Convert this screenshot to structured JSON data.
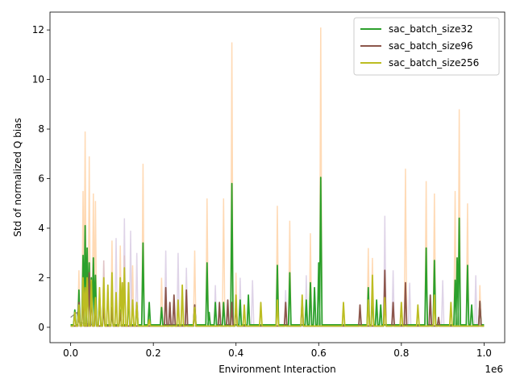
{
  "chart_data": {
    "type": "line",
    "title": "",
    "xlabel": "Environment Interaction",
    "ylabel": "Std of normalized Q bias",
    "x_offset_label": "1e6",
    "xlim": [
      -0.05,
      1.05
    ],
    "ylim": [
      -0.62,
      12.72
    ],
    "x_ticks": [
      0.0,
      0.2,
      0.4,
      0.6,
      0.8,
      1.0
    ],
    "x_tick_labels": [
      "0.0",
      "0.2",
      "0.4",
      "0.6",
      "0.8",
      "1.0"
    ],
    "y_ticks": [
      0,
      2,
      4,
      6,
      8,
      10,
      12
    ],
    "y_tick_labels": [
      "0",
      "2",
      "4",
      "6",
      "8",
      "10",
      "12"
    ],
    "grid": false,
    "legend_position": "top-right",
    "series": [
      {
        "name": "sac_batch_size32",
        "color": "#2ca02c",
        "baseline": 0.1,
        "spikes": [
          [
            0.01,
            0.7
          ],
          [
            0.02,
            1.5
          ],
          [
            0.03,
            2.9
          ],
          [
            0.035,
            4.1
          ],
          [
            0.04,
            3.2
          ],
          [
            0.045,
            2.6
          ],
          [
            0.05,
            2.0
          ],
          [
            0.055,
            2.8
          ],
          [
            0.06,
            2.1
          ],
          [
            0.07,
            1.3
          ],
          [
            0.08,
            0.9
          ],
          [
            0.1,
            0.6
          ],
          [
            0.12,
            0.7
          ],
          [
            0.14,
            1.3
          ],
          [
            0.16,
            0.9
          ],
          [
            0.175,
            3.4
          ],
          [
            0.19,
            1.0
          ],
          [
            0.22,
            0.8
          ],
          [
            0.3,
            0.9
          ],
          [
            0.33,
            2.6
          ],
          [
            0.335,
            0.6
          ],
          [
            0.35,
            1.0
          ],
          [
            0.37,
            1.0
          ],
          [
            0.39,
            5.8
          ],
          [
            0.41,
            1.1
          ],
          [
            0.43,
            1.3
          ],
          [
            0.5,
            2.5
          ],
          [
            0.53,
            2.2
          ],
          [
            0.57,
            1.1
          ],
          [
            0.58,
            1.8
          ],
          [
            0.59,
            1.6
          ],
          [
            0.6,
            2.6
          ],
          [
            0.605,
            6.05
          ],
          [
            0.72,
            1.6
          ],
          [
            0.73,
            1.3
          ],
          [
            0.74,
            1.1
          ],
          [
            0.75,
            0.9
          ],
          [
            0.86,
            3.2
          ],
          [
            0.88,
            2.7
          ],
          [
            0.93,
            1.9
          ],
          [
            0.935,
            2.8
          ],
          [
            0.94,
            4.4
          ],
          [
            0.96,
            2.5
          ],
          [
            0.97,
            0.9
          ],
          [
            0.99,
            1.0
          ]
        ]
      },
      {
        "name": "sac_batch_size96",
        "color": "#8c564b",
        "baseline": 0.05,
        "spikes": [
          [
            0.02,
            1.0
          ],
          [
            0.03,
            1.4
          ],
          [
            0.045,
            2.2
          ],
          [
            0.05,
            1.5
          ],
          [
            0.06,
            1.0
          ],
          [
            0.08,
            0.9
          ],
          [
            0.1,
            0.8
          ],
          [
            0.12,
            0.6
          ],
          [
            0.23,
            1.6
          ],
          [
            0.24,
            1.0
          ],
          [
            0.25,
            1.3
          ],
          [
            0.28,
            1.5
          ],
          [
            0.3,
            0.9
          ],
          [
            0.36,
            1.0
          ],
          [
            0.38,
            1.1
          ],
          [
            0.39,
            1.0
          ],
          [
            0.4,
            1.0
          ],
          [
            0.52,
            1.0
          ],
          [
            0.56,
            1.1
          ],
          [
            0.7,
            0.9
          ],
          [
            0.76,
            2.3
          ],
          [
            0.78,
            1.0
          ],
          [
            0.81,
            1.8
          ],
          [
            0.87,
            1.3
          ],
          [
            0.89,
            0.4
          ],
          [
            0.99,
            1.05
          ]
        ]
      },
      {
        "name": "sac_batch_size256",
        "color": "#bcbd22",
        "baseline": 0.05,
        "spikes": [
          [
            0.01,
            0.6
          ],
          [
            0.02,
            0.9
          ],
          [
            0.03,
            2.0
          ],
          [
            0.035,
            1.6
          ],
          [
            0.04,
            2.0
          ],
          [
            0.05,
            1.9
          ],
          [
            0.06,
            1.2
          ],
          [
            0.07,
            1.6
          ],
          [
            0.08,
            2.0
          ],
          [
            0.09,
            1.7
          ],
          [
            0.1,
            2.2
          ],
          [
            0.11,
            1.4
          ],
          [
            0.12,
            2.0
          ],
          [
            0.125,
            1.8
          ],
          [
            0.13,
            2.4
          ],
          [
            0.14,
            1.8
          ],
          [
            0.15,
            1.1
          ],
          [
            0.16,
            1.0
          ],
          [
            0.19,
            0.3
          ],
          [
            0.26,
            1.1
          ],
          [
            0.27,
            1.7
          ],
          [
            0.3,
            0.8
          ],
          [
            0.4,
            1.3
          ],
          [
            0.42,
            0.9
          ],
          [
            0.46,
            1.0
          ],
          [
            0.5,
            1.1
          ],
          [
            0.56,
            1.3
          ],
          [
            0.66,
            1.0
          ],
          [
            0.72,
            1.1
          ],
          [
            0.73,
            2.1
          ],
          [
            0.76,
            1.2
          ],
          [
            0.8,
            1.0
          ],
          [
            0.84,
            0.9
          ],
          [
            0.88,
            1.3
          ],
          [
            0.92,
            1.0
          ]
        ]
      }
    ],
    "faint_series": [
      {
        "color": "#ffbb78",
        "opacity": 0.55,
        "spikes": [
          [
            0.02,
            2.3
          ],
          [
            0.03,
            5.5
          ],
          [
            0.035,
            7.9
          ],
          [
            0.04,
            3.0
          ],
          [
            0.045,
            6.9
          ],
          [
            0.055,
            5.4
          ],
          [
            0.06,
            5.1
          ],
          [
            0.08,
            2.7
          ],
          [
            0.1,
            3.5
          ],
          [
            0.12,
            3.3
          ],
          [
            0.13,
            2.9
          ],
          [
            0.15,
            2.5
          ],
          [
            0.175,
            6.6
          ],
          [
            0.22,
            2.0
          ],
          [
            0.3,
            3.1
          ],
          [
            0.33,
            5.2
          ],
          [
            0.37,
            5.2
          ],
          [
            0.39,
            11.5
          ],
          [
            0.4,
            2.2
          ],
          [
            0.5,
            4.9
          ],
          [
            0.53,
            4.3
          ],
          [
            0.58,
            3.8
          ],
          [
            0.605,
            12.1
          ],
          [
            0.72,
            3.2
          ],
          [
            0.73,
            2.8
          ],
          [
            0.76,
            2.0
          ],
          [
            0.81,
            6.4
          ],
          [
            0.86,
            5.9
          ],
          [
            0.88,
            5.4
          ],
          [
            0.93,
            5.5
          ],
          [
            0.94,
            8.8
          ],
          [
            0.96,
            5.0
          ],
          [
            0.99,
            1.7
          ]
        ]
      },
      {
        "color": "#c5b0d5",
        "opacity": 0.55,
        "spikes": [
          [
            0.05,
            2.0
          ],
          [
            0.08,
            2.7
          ],
          [
            0.11,
            3.6
          ],
          [
            0.13,
            4.4
          ],
          [
            0.145,
            3.9
          ],
          [
            0.16,
            3.0
          ],
          [
            0.23,
            3.1
          ],
          [
            0.26,
            3.0
          ],
          [
            0.28,
            2.4
          ],
          [
            0.35,
            1.7
          ],
          [
            0.41,
            2.0
          ],
          [
            0.44,
            1.9
          ],
          [
            0.52,
            1.5
          ],
          [
            0.57,
            2.1
          ],
          [
            0.76,
            4.5
          ],
          [
            0.78,
            2.3
          ],
          [
            0.82,
            1.8
          ],
          [
            0.9,
            1.9
          ],
          [
            0.98,
            2.1
          ]
        ]
      }
    ]
  }
}
